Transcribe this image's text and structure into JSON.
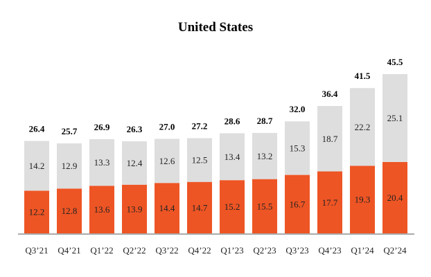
{
  "chart_data": {
    "type": "bar",
    "stacked": true,
    "title": "United States",
    "categories": [
      "Q3’21",
      "Q4’21",
      "Q1’22",
      "Q2’22",
      "Q3’22",
      "Q4’22",
      "Q1’23",
      "Q2’23",
      "Q3’23",
      "Q4’23",
      "Q1’24",
      "Q2’24"
    ],
    "series": [
      {
        "color": "#ee5524",
        "values": [
          12.2,
          12.8,
          13.6,
          13.9,
          14.4,
          14.7,
          15.2,
          15.5,
          16.7,
          17.7,
          19.3,
          20.4
        ]
      },
      {
        "color": "#dedede",
        "values": [
          14.2,
          12.9,
          13.3,
          12.4,
          12.6,
          12.5,
          13.4,
          13.2,
          15.3,
          18.7,
          22.2,
          25.1
        ]
      }
    ],
    "totals": [
      26.4,
      25.7,
      26.9,
      26.3,
      27.0,
      27.2,
      28.6,
      28.7,
      32.0,
      36.4,
      41.5,
      45.5
    ],
    "ylim": [
      0,
      45.5
    ],
    "grid": false,
    "legend": "none"
  }
}
